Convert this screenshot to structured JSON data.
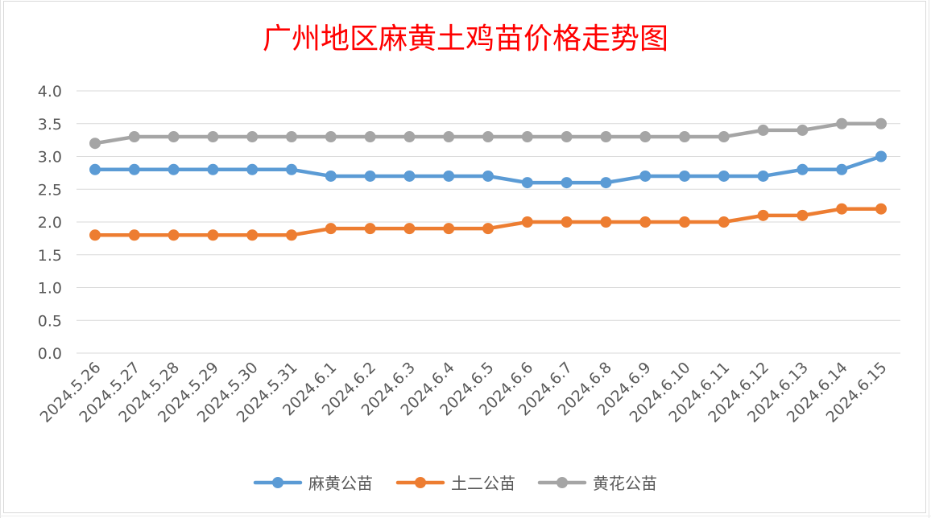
{
  "chart_data": {
    "type": "line",
    "title": "广州地区麻黄土鸡苗价格走势图",
    "xlabel": "",
    "ylabel": "",
    "ylim": [
      0,
      4.0
    ],
    "yticks": [
      "0.0",
      "0.5",
      "1.0",
      "1.5",
      "2.0",
      "2.5",
      "3.0",
      "3.5",
      "4.0"
    ],
    "grid": true,
    "legend": "bottom",
    "categories": [
      "2024.5.26",
      "2024.5.27",
      "2024.5.28",
      "2024.5.29",
      "2024.5.30",
      "2024.5.31",
      "2024.6.1",
      "2024.6.2",
      "2024.6.3",
      "2024.6.4",
      "2024.6.5",
      "2024.6.6",
      "2024.6.7",
      "2024.6.8",
      "2024.6.9",
      "2024.6.10",
      "2024.6.11",
      "2024.6.12",
      "2024.6.13",
      "2024.6.14",
      "2024.6.15"
    ],
    "series": [
      {
        "name": "麻黄公苗",
        "color": "#5b9bd5",
        "values": [
          2.8,
          2.8,
          2.8,
          2.8,
          2.8,
          2.8,
          2.7,
          2.7,
          2.7,
          2.7,
          2.7,
          2.6,
          2.6,
          2.6,
          2.7,
          2.7,
          2.7,
          2.7,
          2.8,
          2.8,
          3.0
        ]
      },
      {
        "name": "土二公苗",
        "color": "#ed7d31",
        "values": [
          1.8,
          1.8,
          1.8,
          1.8,
          1.8,
          1.8,
          1.9,
          1.9,
          1.9,
          1.9,
          1.9,
          2.0,
          2.0,
          2.0,
          2.0,
          2.0,
          2.0,
          2.1,
          2.1,
          2.2,
          2.2
        ]
      },
      {
        "name": "黄花公苗",
        "color": "#a5a5a5",
        "values": [
          3.2,
          3.3,
          3.3,
          3.3,
          3.3,
          3.3,
          3.3,
          3.3,
          3.3,
          3.3,
          3.3,
          3.3,
          3.3,
          3.3,
          3.3,
          3.3,
          3.3,
          3.4,
          3.4,
          3.5,
          3.5
        ]
      }
    ]
  }
}
